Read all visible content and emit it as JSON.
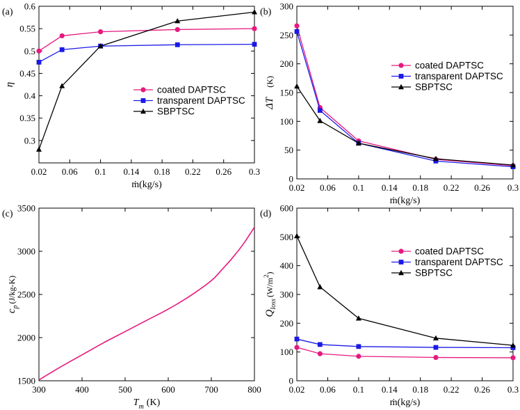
{
  "colors": {
    "magenta": "#e6197f",
    "blue": "#1a1ae6",
    "black": "#000000",
    "axis": "#000000"
  },
  "chart_data": [
    {
      "panel_label": "(a)",
      "type": "line",
      "xlabel": "ṁ(kg/s)",
      "ylabel": "η",
      "xlim": [
        0.02,
        0.3
      ],
      "ylim": [
        0.25,
        0.6
      ],
      "xticks": [
        0.02,
        0.06,
        0.1,
        0.14,
        0.18,
        0.22,
        0.26,
        0.3
      ],
      "xtick_labels": [
        "0.02",
        "0.06",
        "0.1",
        "0.14",
        "0.18",
        "0.22",
        "0.26",
        "0.3"
      ],
      "yticks": [
        0.3,
        0.35,
        0.4,
        0.45,
        0.5,
        0.55,
        0.6
      ],
      "ytick_labels": [
        "0.3",
        "0.35",
        "0.4",
        "0.45",
        "0.5",
        "0.55",
        "0.6"
      ],
      "legend_position": "center-right",
      "series": [
        {
          "name": "coated DAPTSC",
          "color": "#e6197f",
          "marker": "circle",
          "x": [
            0.02,
            0.05,
            0.1,
            0.2,
            0.3
          ],
          "y": [
            0.5,
            0.534,
            0.543,
            0.548,
            0.55
          ]
        },
        {
          "name": "transparent DAPTSC",
          "color": "#1a1ae6",
          "marker": "square",
          "x": [
            0.02,
            0.05,
            0.1,
            0.2,
            0.3
          ],
          "y": [
            0.475,
            0.503,
            0.511,
            0.514,
            0.515
          ]
        },
        {
          "name": "SBPTSC",
          "color": "#000000",
          "marker": "triangle",
          "x": [
            0.02,
            0.05,
            0.1,
            0.2,
            0.3
          ],
          "y": [
            0.28,
            0.422,
            0.511,
            0.567,
            0.587
          ]
        }
      ]
    },
    {
      "panel_label": "(b)",
      "type": "line",
      "xlabel": "ṁ(kg/s)",
      "ylabel": "ΔT",
      "ylabel_unit": "(K)",
      "xlim": [
        0.02,
        0.3
      ],
      "ylim": [
        0,
        300
      ],
      "xticks": [
        0.02,
        0.06,
        0.1,
        0.14,
        0.18,
        0.22,
        0.26,
        0.3
      ],
      "xtick_labels": [
        "0.02",
        "0.06",
        "0.1",
        "0.14",
        "0.18",
        "0.22",
        "0.26",
        "0.3"
      ],
      "yticks": [
        0,
        50,
        100,
        150,
        200,
        250,
        300
      ],
      "ytick_labels": [
        "0",
        "50",
        "100",
        "150",
        "200",
        "250",
        "300"
      ],
      "legend_position": "center-right",
      "series": [
        {
          "name": "coated DAPTSC",
          "color": "#e6197f",
          "marker": "circle",
          "x": [
            0.02,
            0.05,
            0.1,
            0.2,
            0.3
          ],
          "y": [
            266,
            124,
            66,
            34,
            23
          ]
        },
        {
          "name": "transparent DAPTSC",
          "color": "#1a1ae6",
          "marker": "square",
          "x": [
            0.02,
            0.05,
            0.1,
            0.2,
            0.3
          ],
          "y": [
            256,
            119,
            62,
            31,
            21
          ]
        },
        {
          "name": "SBPTSC",
          "color": "#000000",
          "marker": "triangle",
          "x": [
            0.02,
            0.05,
            0.1,
            0.2,
            0.3
          ],
          "y": [
            161,
            101,
            62,
            35,
            24
          ]
        }
      ]
    },
    {
      "panel_label": "(c)",
      "type": "line",
      "xlabel": "T",
      "xlabel_sub": "m",
      "xlabel_unit": "(K)",
      "ylabel": "c",
      "ylabel_sub": "p",
      "ylabel_unit": "(J/kg-K)",
      "xlim": [
        300,
        800
      ],
      "ylim": [
        1500,
        3500
      ],
      "xticks": [
        300,
        400,
        500,
        600,
        700,
        800
      ],
      "xtick_labels": [
        "300",
        "400",
        "500",
        "600",
        "700",
        "800"
      ],
      "yticks": [
        1500,
        2000,
        2500,
        3000,
        3500
      ],
      "ytick_labels": [
        "1500",
        "2000",
        "2500",
        "3000",
        "3500"
      ],
      "series": [
        {
          "name": "cp",
          "color": "#e6197f",
          "marker": "none",
          "x": [
            300,
            350,
            400,
            450,
            500,
            550,
            600,
            650,
            700,
            725,
            750,
            775,
            800
          ],
          "y": [
            1510,
            1660,
            1800,
            1940,
            2070,
            2200,
            2330,
            2480,
            2660,
            2790,
            2930,
            3090,
            3280
          ]
        }
      ]
    },
    {
      "panel_label": "(d)",
      "type": "line",
      "xlabel": "ṁ(kg/s)",
      "ylabel": "Q",
      "ylabel_sub": "loss",
      "ylabel_unit": "(W/m",
      "ylabel_sup": "2",
      "ylabel_close": ")",
      "xlim": [
        0.02,
        0.3
      ],
      "ylim": [
        0,
        600
      ],
      "xticks": [
        0.02,
        0.06,
        0.1,
        0.14,
        0.18,
        0.22,
        0.26,
        0.3
      ],
      "xtick_labels": [
        "0.02",
        "0.06",
        "0.1",
        "0.14",
        "0.18",
        "0.22",
        "0.26",
        "0.3"
      ],
      "yticks": [
        0,
        100,
        200,
        300,
        400,
        500,
        600
      ],
      "ytick_labels": [
        "0",
        "100",
        "200",
        "300",
        "400",
        "500",
        "600"
      ],
      "legend_position": "upper-right",
      "series": [
        {
          "name": "coated DAPTSC",
          "color": "#e6197f",
          "marker": "circle",
          "x": [
            0.02,
            0.05,
            0.1,
            0.2,
            0.3
          ],
          "y": [
            116,
            94,
            85,
            81,
            80
          ]
        },
        {
          "name": "transparent DAPTSC",
          "color": "#1a1ae6",
          "marker": "square",
          "x": [
            0.02,
            0.05,
            0.1,
            0.2,
            0.3
          ],
          "y": [
            145,
            126,
            119,
            116,
            115
          ]
        },
        {
          "name": "SBPTSC",
          "color": "#000000",
          "marker": "triangle",
          "x": [
            0.02,
            0.05,
            0.1,
            0.2,
            0.3
          ],
          "y": [
            503,
            326,
            217,
            148,
            123
          ]
        }
      ]
    }
  ]
}
